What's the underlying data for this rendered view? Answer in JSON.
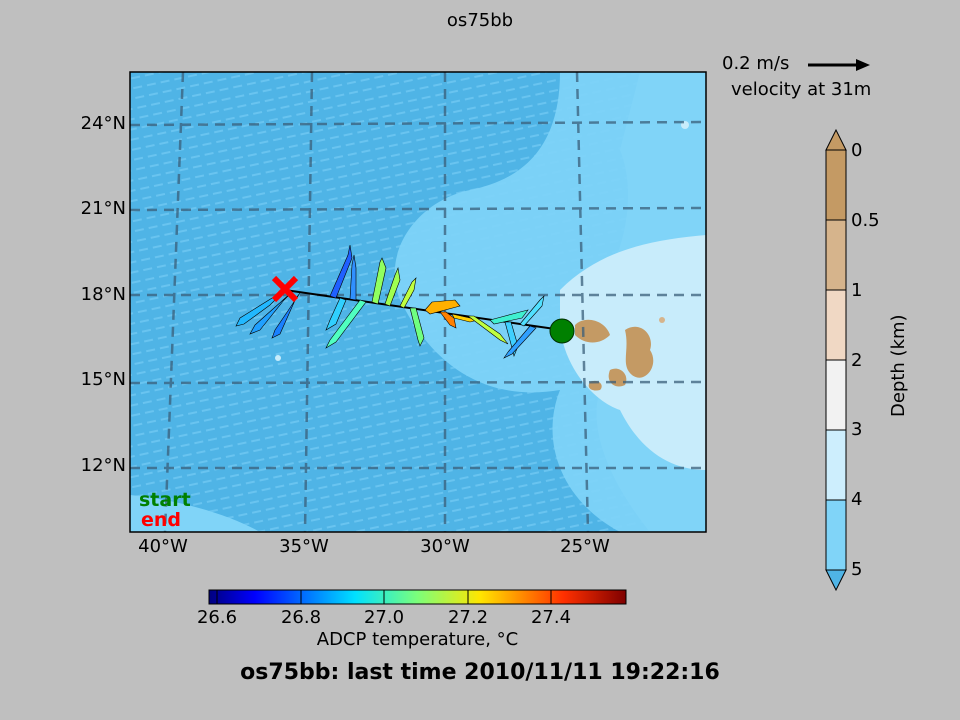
{
  "header": {
    "title": "os75bb"
  },
  "footer": {
    "status": "os75bb: last time 2010/11/11 19:22:16"
  },
  "map": {
    "lat_ticks": [
      "24°N",
      "21°N",
      "18°N",
      "15°N",
      "12°N"
    ],
    "lon_ticks": [
      "40°W",
      "35°W",
      "30°W",
      "25°W"
    ],
    "legend": {
      "start": "start",
      "end": "end"
    },
    "colors": {
      "ocean_deep": "#4fb4e6",
      "ocean_mid": "#80d4f8",
      "ocean_shallow": "#c8ecfb",
      "land": "#c8a070",
      "start_marker": "#008000",
      "end_marker": "#ff0000"
    }
  },
  "reference_vector": {
    "scale": "0.2 m/s",
    "label": "velocity at 31m"
  },
  "depth_colorbar": {
    "label": "Depth (km)",
    "ticks": [
      "0",
      "0.5",
      "1",
      "2",
      "3",
      "4",
      "5"
    ],
    "colors": [
      "#c49a64",
      "#d6b48c",
      "#f0d8c4",
      "#f2f2f2",
      "#cdeefd",
      "#80d4f8",
      "#4fb4e6"
    ]
  },
  "temperature_colorbar": {
    "label": "ADCP temperature, °C",
    "ticks": [
      "26.6",
      "26.8",
      "27.0",
      "27.2",
      "27.4"
    ]
  }
}
